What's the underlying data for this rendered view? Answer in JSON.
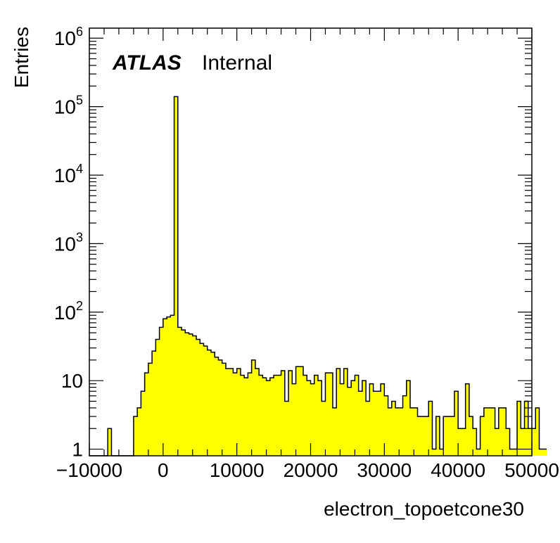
{
  "chart_data": {
    "type": "bar",
    "style": "step-filled-histogram",
    "fill_color": "#ffff00",
    "line_color": "#000000",
    "xlabel": "electron_topoetcone30",
    "ylabel": "Entries",
    "label_bold": "ATLAS",
    "label_text": "Internal",
    "xlim": [
      -10000,
      50000
    ],
    "ylim": [
      0.8,
      1400000
    ],
    "yscale": "log",
    "xticks": [
      -10000,
      0,
      10000,
      20000,
      30000,
      40000,
      50000
    ],
    "xtick_labels": [
      "−10000",
      "0",
      "10000",
      "20000",
      "30000",
      "40000",
      "50000"
    ],
    "yticks": [
      1,
      10,
      100,
      1000,
      10000,
      100000,
      1000000
    ],
    "ytick_labels": [
      {
        "base": "1",
        "exp": ""
      },
      {
        "base": "10",
        "exp": ""
      },
      {
        "base": "10",
        "exp": "2"
      },
      {
        "base": "10",
        "exp": "3"
      },
      {
        "base": "10",
        "exp": "4"
      },
      {
        "base": "10",
        "exp": "5"
      },
      {
        "base": "10",
        "exp": "6"
      }
    ],
    "bin_width": 500,
    "bin_start": -10000,
    "values": [
      0,
      0,
      0,
      0,
      0,
      2,
      0,
      0,
      0,
      0,
      0,
      0,
      3,
      4,
      7,
      13,
      18,
      27,
      40,
      60,
      80,
      85,
      90,
      140000,
      60,
      55,
      50,
      48,
      45,
      40,
      35,
      32,
      28,
      26,
      22,
      20,
      18,
      15,
      15,
      13,
      15,
      12,
      11,
      13,
      20,
      15,
      12,
      11,
      10,
      11,
      12,
      12,
      14,
      5,
      14,
      9,
      16,
      16,
      12,
      10,
      9,
      12,
      10,
      5,
      13,
      13,
      4,
      15,
      9,
      15,
      8,
      10,
      12,
      7,
      10,
      5,
      9,
      7,
      7,
      9,
      6,
      4,
      5,
      4,
      4,
      6,
      10,
      4,
      4,
      3,
      3,
      3,
      5,
      1,
      3,
      1,
      3,
      3,
      3,
      7,
      2,
      2,
      9,
      3,
      2,
      1,
      3,
      4,
      4,
      4,
      2,
      4,
      4,
      2,
      1,
      1,
      5,
      2,
      5,
      2,
      2,
      4,
      1,
      1
    ]
  }
}
